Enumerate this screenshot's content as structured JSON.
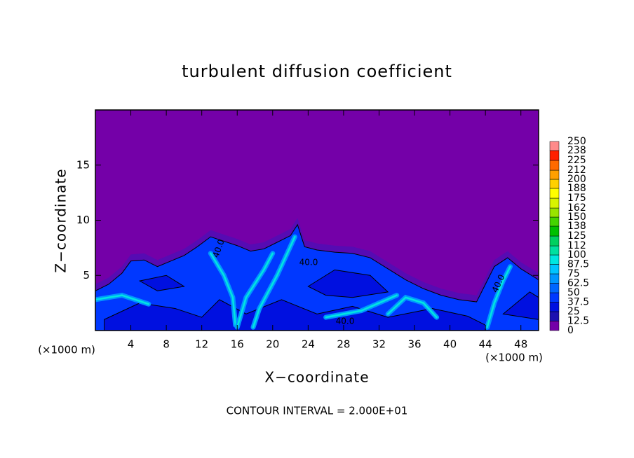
{
  "chart_data": {
    "type": "contour",
    "title": "turbulent diffusion coefficient",
    "xlabel": "X−coordinate",
    "ylabel": "Z−coordinate",
    "x_unit_labels": [
      "(×1000 m)",
      "(×1000 m)"
    ],
    "footer": "CONTOUR INTERVAL = 2.000E+01",
    "xlim": [
      0,
      50
    ],
    "ylim": [
      0,
      20
    ],
    "xticks": [
      4,
      8,
      12,
      16,
      20,
      24,
      28,
      32,
      36,
      40,
      44,
      48
    ],
    "yticks": [
      5,
      10,
      15
    ],
    "contour_labels": [
      "40.0",
      "40.0",
      "40.0",
      "40.0"
    ],
    "colorbar": {
      "levels": [
        0,
        12.5,
        25,
        37.5,
        50,
        62.5,
        75,
        87.5,
        100,
        112,
        125,
        138,
        150,
        162,
        175,
        188,
        200,
        212,
        225,
        238,
        250
      ],
      "colors": [
        "#7400a8",
        "#1c10b0",
        "#0010e0",
        "#0038ff",
        "#0066ff",
        "#0096ff",
        "#00c4ff",
        "#00e6e0",
        "#00e0a0",
        "#00d060",
        "#00c000",
        "#44d400",
        "#98e400",
        "#d8f400",
        "#ffff00",
        "#ffd000",
        "#ffa000",
        "#ff6a00",
        "#ff2000",
        "#ff8a8a"
      ]
    }
  }
}
